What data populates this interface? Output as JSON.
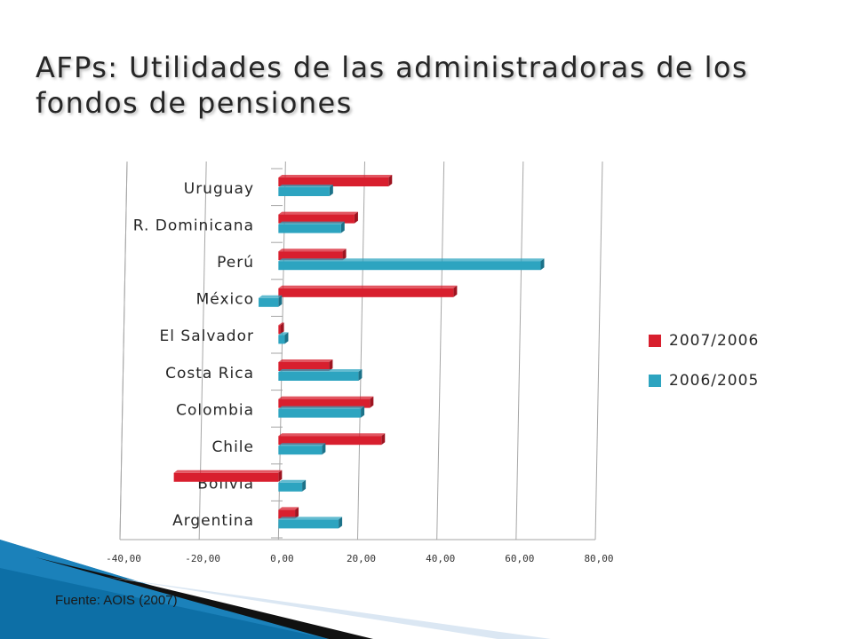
{
  "title": "AFPs: Utilidades de las administradoras de los fondos de pensiones",
  "source": "Fuente: AOIS (2007)",
  "colors": {
    "series_2007": "#d81f2e",
    "series_2006": "#2da4c0",
    "grid": "#a6a6a6",
    "decor_blue": "#0d6fa6",
    "decor_light": "#dbe7f3"
  },
  "chart_data": {
    "type": "bar",
    "orientation": "horizontal",
    "categories": [
      "Uruguay",
      "R. Dominicana",
      "Perú",
      "México",
      "El Salvador",
      "Costa Rica",
      "Colombia",
      "Chile",
      "Bolivia",
      "Argentina"
    ],
    "series": [
      {
        "name": "2007/2006",
        "values": [
          27.8,
          19.2,
          16.2,
          44.2,
          0.5,
          12.8,
          23.1,
          26.0,
          -26.4,
          4.2
        ]
      },
      {
        "name": "2006/2005",
        "values": [
          12.9,
          15.8,
          66.2,
          -5.0,
          1.6,
          20.2,
          20.8,
          11.0,
          6.0,
          15.2
        ]
      }
    ],
    "xlim": [
      -40,
      80
    ],
    "xticks": [
      "-40,00",
      "-20,00",
      "0,00",
      "20,00",
      "40,00",
      "60,00",
      "80,00"
    ],
    "grid": true,
    "legend_position": "right"
  }
}
